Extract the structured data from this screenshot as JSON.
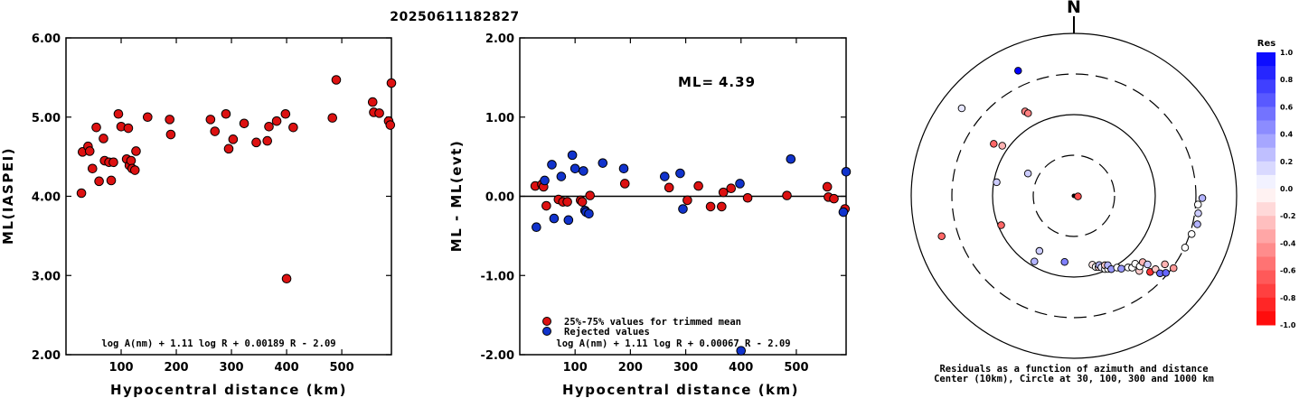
{
  "title": "20250611182827",
  "colors": {
    "accepted": "#dd1111",
    "rejected": "#1133cc"
  },
  "chart_data": [
    {
      "type": "scatter",
      "ylabel": "ML(IASPEI)",
      "xlabel": "Hypocentral distance (km)",
      "xlim": [
        0,
        590
      ],
      "ylim": [
        2.0,
        6.0
      ],
      "xticks": [
        100,
        200,
        300,
        400,
        500
      ],
      "yticks": [
        "2.00",
        "3.00",
        "4.00",
        "5.00",
        "6.00"
      ],
      "formula": "log A(nm) + 1.11 log R + 0.00189 R - 2.09",
      "points": [
        [
          28,
          4.04
        ],
        [
          30,
          4.56
        ],
        [
          40,
          4.63
        ],
        [
          43,
          4.57
        ],
        [
          48,
          4.35
        ],
        [
          55,
          4.87
        ],
        [
          60,
          4.19
        ],
        [
          68,
          4.73
        ],
        [
          70,
          4.45
        ],
        [
          78,
          4.43
        ],
        [
          82,
          4.2
        ],
        [
          86,
          4.43
        ],
        [
          95,
          5.04
        ],
        [
          100,
          4.88
        ],
        [
          110,
          4.47
        ],
        [
          113,
          4.86
        ],
        [
          115,
          4.39
        ],
        [
          118,
          4.45
        ],
        [
          120,
          4.35
        ],
        [
          125,
          4.33
        ],
        [
          127,
          4.57
        ],
        [
          148,
          5.0
        ],
        [
          188,
          4.97
        ],
        [
          190,
          4.78
        ],
        [
          262,
          4.97
        ],
        [
          270,
          4.82
        ],
        [
          290,
          5.04
        ],
        [
          295,
          4.6
        ],
        [
          303,
          4.72
        ],
        [
          323,
          4.92
        ],
        [
          345,
          4.68
        ],
        [
          365,
          4.7
        ],
        [
          368,
          4.88
        ],
        [
          382,
          4.95
        ],
        [
          398,
          5.04
        ],
        [
          400,
          2.96
        ],
        [
          412,
          4.87
        ],
        [
          483,
          4.99
        ],
        [
          490,
          5.47
        ],
        [
          556,
          5.19
        ],
        [
          558,
          5.06
        ],
        [
          568,
          5.05
        ],
        [
          585,
          4.95
        ],
        [
          588,
          4.9
        ],
        [
          590,
          5.43
        ]
      ]
    },
    {
      "type": "scatter",
      "ylabel": "ML - ML(evt)",
      "xlabel": "Hypocentral distance (km)",
      "xlim": [
        0,
        590
      ],
      "ylim": [
        -2.0,
        2.0
      ],
      "xticks": [
        100,
        200,
        300,
        400,
        500
      ],
      "yticks": [
        "-2.00",
        "-1.00",
        "0.00",
        "1.00",
        "2.00"
      ],
      "ml_label": "ML=",
      "ml_value": "4.39",
      "formula": "log A(nm) + 1.11 log R + 0.00067 R - 2.09",
      "legend": [
        "25%-75% values for trimmed mean",
        "Rejected values"
      ],
      "series": [
        {
          "name": "25%-75% values for trimmed mean",
          "points": [
            [
              28,
              0.13
            ],
            [
              40,
              0.15
            ],
            [
              43,
              0.12
            ],
            [
              48,
              -0.12
            ],
            [
              70,
              -0.04
            ],
            [
              78,
              -0.07
            ],
            [
              86,
              -0.07
            ],
            [
              110,
              -0.05
            ],
            [
              113,
              -0.07
            ],
            [
              127,
              0.01
            ],
            [
              190,
              0.16
            ],
            [
              270,
              0.11
            ],
            [
              303,
              -0.05
            ],
            [
              323,
              0.13
            ],
            [
              345,
              -0.13
            ],
            [
              365,
              -0.13
            ],
            [
              368,
              0.05
            ],
            [
              382,
              0.1
            ],
            [
              412,
              -0.02
            ],
            [
              483,
              0.01
            ],
            [
              556,
              0.12
            ],
            [
              558,
              -0.01
            ],
            [
              568,
              -0.03
            ],
            [
              588,
              -0.16
            ]
          ]
        },
        {
          "name": "Rejected values",
          "points": [
            [
              30,
              -0.39
            ],
            [
              45,
              0.2
            ],
            [
              58,
              0.4
            ],
            [
              62,
              -0.28
            ],
            [
              75,
              0.25
            ],
            [
              88,
              -0.3
            ],
            [
              95,
              0.52
            ],
            [
              100,
              0.35
            ],
            [
              115,
              0.32
            ],
            [
              118,
              -0.18
            ],
            [
              120,
              -0.2
            ],
            [
              125,
              -0.22
            ],
            [
              150,
              0.42
            ],
            [
              188,
              0.35
            ],
            [
              262,
              0.25
            ],
            [
              290,
              0.29
            ],
            [
              295,
              -0.16
            ],
            [
              398,
              0.16
            ],
            [
              400,
              -1.95
            ],
            [
              490,
              0.47
            ],
            [
              585,
              -0.2
            ],
            [
              590,
              0.31
            ]
          ]
        }
      ]
    },
    {
      "type": "scatter",
      "subtype": "polar",
      "north_label": "N",
      "caption_line1": "Residuals as a function of azimuth and distance",
      "caption_line2": "Center (10km), Circle at 30, 100, 300 and 1000 km",
      "colorbar_title": "Res",
      "colorbar_ticks": [
        "1.0",
        "0.8",
        "0.6",
        "0.4",
        "0.2",
        "0.0",
        "-0.2",
        "-0.4",
        "-0.6",
        "-0.8",
        "-1.0"
      ],
      "stations": [
        {
          "azimuth": 336,
          "distance": 560,
          "residual": 1.0
        },
        {
          "azimuth": 308,
          "distance": 650,
          "residual": 0.1
        },
        {
          "azimuth": 330,
          "distance": 180,
          "residual": -0.5
        },
        {
          "azimuth": 331,
          "distance": 165,
          "residual": -0.5
        },
        {
          "azimuth": 303,
          "distance": 170,
          "residual": -0.6
        },
        {
          "azimuth": 305,
          "distance": 130,
          "residual": -0.3
        },
        {
          "azimuth": 296,
          "distance": 48,
          "residual": 0.2
        },
        {
          "azimuth": 280,
          "distance": 95,
          "residual": 0.2
        },
        {
          "azimuth": 98,
          "distance": 12,
          "residual": -0.7
        },
        {
          "azimuth": 248,
          "distance": 95,
          "residual": -0.6
        },
        {
          "azimuth": 253,
          "distance": 580,
          "residual": -0.6
        },
        {
          "azimuth": 212,
          "distance": 72,
          "residual": 0.2
        },
        {
          "azimuth": 211,
          "distance": 92,
          "residual": 0.3
        },
        {
          "azimuth": 188,
          "distance": 75,
          "residual": 0.5
        },
        {
          "azimuth": 165,
          "distance": 83,
          "residual": -0.1
        },
        {
          "azimuth": 163,
          "distance": 88,
          "residual": 0.0
        },
        {
          "azimuth": 161,
          "distance": 90,
          "residual": -0.2
        },
        {
          "azimuth": 160,
          "distance": 87,
          "residual": 0.3
        },
        {
          "azimuth": 159,
          "distance": 92,
          "residual": 0.1
        },
        {
          "azimuth": 157,
          "distance": 97,
          "residual": 0.0
        },
        {
          "azimuth": 156,
          "distance": 91,
          "residual": -0.2
        },
        {
          "azimuth": 155,
          "distance": 99,
          "residual": 0.0
        },
        {
          "azimuth": 154,
          "distance": 93,
          "residual": 0.3
        },
        {
          "azimuth": 153,
          "distance": 105,
          "residual": 0.4
        },
        {
          "azimuth": 149,
          "distance": 112,
          "residual": 0.0
        },
        {
          "azimuth": 147,
          "distance": 128,
          "residual": 0.4
        },
        {
          "azimuth": 143,
          "distance": 142,
          "residual": 0.0
        },
        {
          "azimuth": 141,
          "distance": 155,
          "residual": 0.0
        },
        {
          "azimuth": 139,
          "distance": 190,
          "residual": -0.2
        },
        {
          "azimuth": 138,
          "distance": 150,
          "residual": 0.0
        },
        {
          "azimuth": 137,
          "distance": 175,
          "residual": 0.0
        },
        {
          "azimuth": 135,
          "distance": 230,
          "residual": -0.8
        },
        {
          "azimuth": 134,
          "distance": 170,
          "residual": -0.3
        },
        {
          "azimuth": 133,
          "distance": 195,
          "residual": 0.2
        },
        {
          "azimuth": 132,
          "distance": 240,
          "residual": -0.2
        },
        {
          "azimuth": 132,
          "distance": 270,
          "residual": 0.6
        },
        {
          "azimuth": 130,
          "distance": 290,
          "residual": 0.6
        },
        {
          "azimuth": 127,
          "distance": 260,
          "residual": -0.3
        },
        {
          "azimuth": 126,
          "distance": 320,
          "residual": -0.4
        },
        {
          "azimuth": 115,
          "distance": 310,
          "residual": 0.0
        },
        {
          "azimuth": 108,
          "distance": 330,
          "residual": 0.0
        },
        {
          "azimuth": 103,
          "distance": 380,
          "residual": 0.3
        },
        {
          "azimuth": 98,
          "distance": 360,
          "residual": 0.2
        },
        {
          "azimuth": 94,
          "distance": 340,
          "residual": 0.0
        },
        {
          "azimuth": 91,
          "distance": 410,
          "residual": 0.3
        }
      ]
    }
  ]
}
